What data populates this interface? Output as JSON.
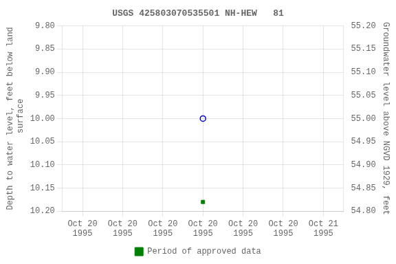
{
  "chart_data": {
    "type": "scatter",
    "title": "USGS 425803070535501 NH-HEW   81",
    "categories": [
      "Oct 20\n1995",
      "Oct 20\n1995",
      "Oct 20\n1995",
      "Oct 20\n1995",
      "Oct 20\n1995",
      "Oct 20\n1995",
      "Oct 21\n1995"
    ],
    "y_label": "Depth to water level, feet below land\n surface",
    "y2_label": "Groundwater level above NGVD 1929, feet",
    "ylim": [
      10.2,
      9.8
    ],
    "yticks": [
      {
        "value": 9.8,
        "label": "9.80"
      },
      {
        "value": 9.85,
        "label": "9.85"
      },
      {
        "value": 9.9,
        "label": "9.90"
      },
      {
        "value": 9.95,
        "label": "9.95"
      },
      {
        "value": 10.0,
        "label": "10.00"
      },
      {
        "value": 10.05,
        "label": "10.05"
      },
      {
        "value": 10.1,
        "label": "10.10"
      },
      {
        "value": 10.15,
        "label": "10.15"
      },
      {
        "value": 10.2,
        "label": "10.20"
      }
    ],
    "y2lim": [
      54.8,
      55.2
    ],
    "y2ticks": [
      {
        "value": 54.8,
        "label": "54.80"
      },
      {
        "value": 54.85,
        "label": "54.85"
      },
      {
        "value": 54.9,
        "label": "54.90"
      },
      {
        "value": 54.95,
        "label": "54.95"
      },
      {
        "value": 55.0,
        "label": "55.00"
      },
      {
        "value": 55.05,
        "label": "55.05"
      },
      {
        "value": 55.1,
        "label": "55.10"
      },
      {
        "value": 55.15,
        "label": "55.15"
      },
      {
        "value": 55.2,
        "label": "55.20"
      }
    ],
    "series": [
      {
        "color": "#0000cc",
        "marker": "circle",
        "values": [
          null,
          null,
          null,
          10.0,
          null,
          null,
          null
        ]
      },
      {
        "name": "Period of approved data",
        "color": "#008000",
        "marker": "square",
        "values": [
          null,
          null,
          null,
          10.18,
          null,
          null,
          null
        ]
      }
    ],
    "grid": true,
    "legend": "bottom"
  }
}
